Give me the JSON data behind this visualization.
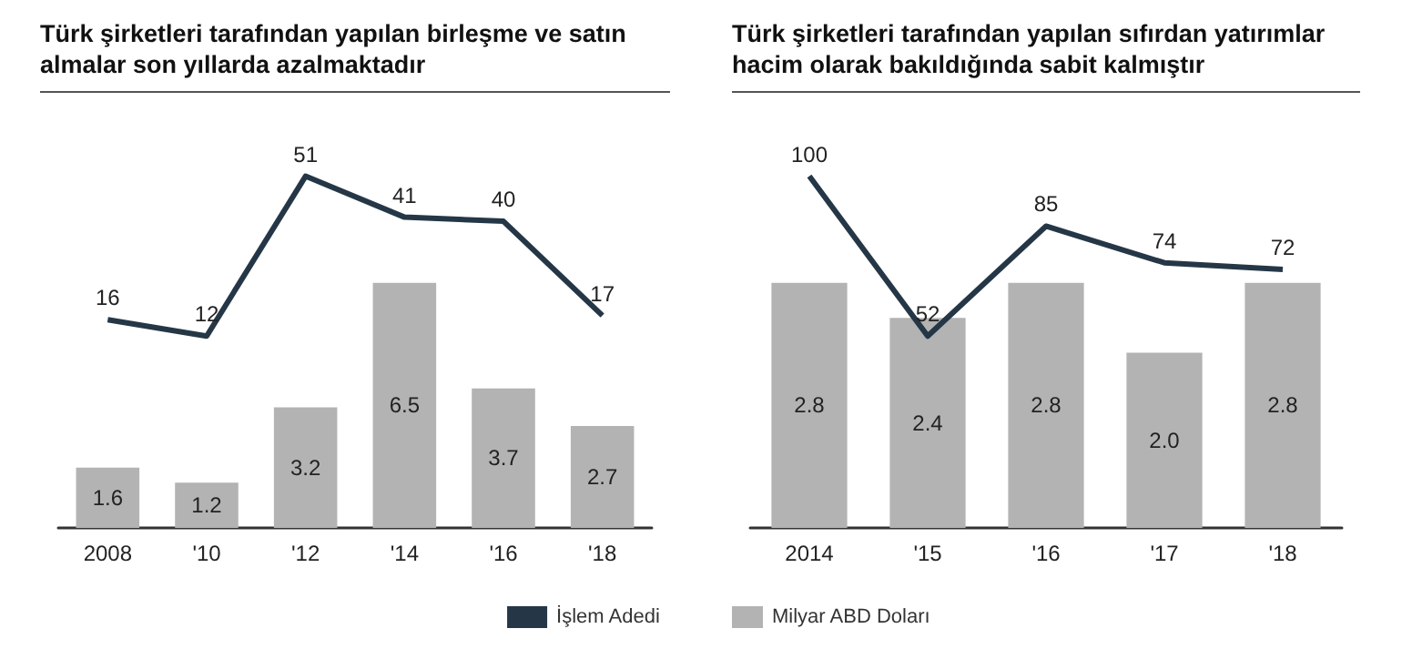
{
  "chart_data": [
    {
      "type": "bar",
      "title": "Türk şirketleri tarafından yapılan birleşme ve satın almalar son yıllarda azalmaktadır",
      "categories": [
        "2008",
        "'10",
        "'12",
        "'14",
        "'16",
        "'18"
      ],
      "series": [
        {
          "color": "#b3b3b3",
          "values": [
            1.6,
            1.2,
            3.2,
            6.5,
            3.7,
            2.7
          ]
        },
        {
          "type": "line",
          "name": "İşlem Adedi",
          "color": "#253746",
          "axis": "y2",
          "values": [
            16,
            12,
            51,
            41,
            40,
            17
          ]
        }
      ],
      "data_labels": true,
      "legend": "bottom right",
      "tick_labels": "x"
    },
    {
      "type": "bar",
      "title": "Türk şirketleri tarafından yapılan sıfırdan yatırımlar hacim olarak bakıldığında sabit kalmıştır",
      "categories": [
        "2014",
        "'15",
        "'16",
        "'17",
        "'18"
      ],
      "series": [
        {
          "name": "Milyar ABD Doları",
          "color": "#b3b3b3",
          "values": [
            2.8,
            2.4,
            2.8,
            2.0,
            2.8
          ],
          "value_labels": [
            "2.8",
            "2.4",
            "2.8",
            "2.0",
            "2.8"
          ]
        },
        {
          "type": "line",
          "color": "#253746",
          "axis": "y2",
          "values": [
            100,
            52,
            85,
            74,
            72
          ],
          "value_labels": [
            "100",
            "52",
            "85",
            "74",
            "72"
          ]
        }
      ],
      "legend": "bottom left",
      "tick_labels": "x"
    }
  ]
}
